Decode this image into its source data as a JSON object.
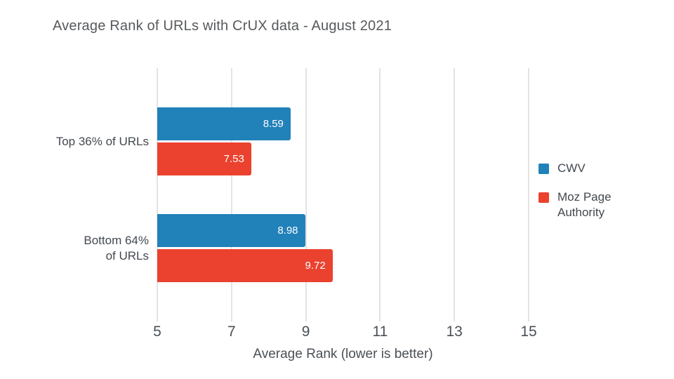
{
  "chart_data": {
    "type": "bar",
    "orientation": "horizontal",
    "title": "Average Rank of URLs with CrUX data - August 2021",
    "xlabel": "Average Rank (lower is better)",
    "categories": [
      "Top 36% of URLs",
      "Bottom 64%\nof URLs"
    ],
    "series": [
      {
        "name": "CWV",
        "color": "#2181B9",
        "values": [
          8.59,
          8.98
        ]
      },
      {
        "name": "Moz Page Authority",
        "color": "#EA422F",
        "values": [
          7.53,
          9.72
        ]
      }
    ],
    "xlim": [
      5,
      15
    ],
    "xticks": [
      5,
      7,
      9,
      11,
      13,
      15
    ],
    "grid": "vertical-gridlines",
    "legend_position": "right",
    "value_labels": "inside-end",
    "colors": {
      "gridline": "#E3E3E3",
      "title_text": "#56595C",
      "axis_text": "#4A5056",
      "label_text": "#43494F",
      "value_label_text": "#FFFFFF"
    }
  }
}
